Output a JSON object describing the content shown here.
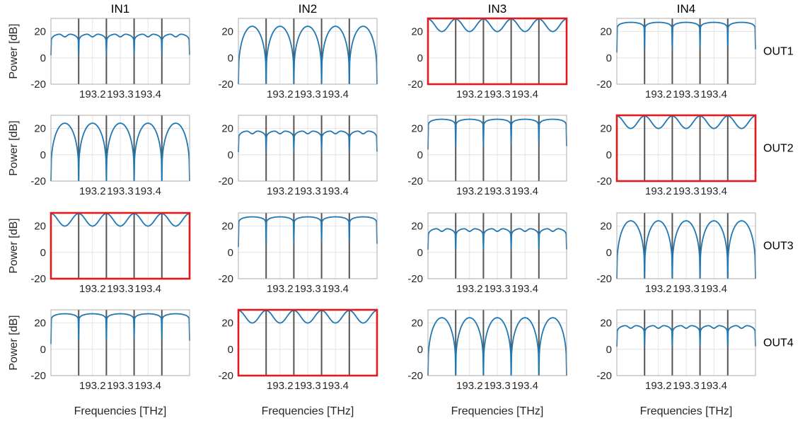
{
  "figure": {
    "column_titles": [
      "IN1",
      "IN2",
      "IN3",
      "IN4"
    ],
    "row_labels": [
      "OUT1",
      "OUT2",
      "OUT3",
      "OUT4"
    ]
  },
  "colors": {
    "line": "#1f77b4",
    "highlight_border": "#e31a1c",
    "channel_marker": "#555555",
    "grid": "#dddddd",
    "axes": "#262626"
  },
  "chart_data": {
    "type": "line",
    "layout": "4x4 subplot grid",
    "xlabel": "Frequencies [THz]",
    "ylabel": "Power [dB]",
    "xlim": [
      193.05,
      193.55
    ],
    "ylim": [
      -20,
      30
    ],
    "xticks": [
      193.2,
      193.3,
      193.4
    ],
    "xtick_labels": [
      "193.2",
      "193.3",
      "193.4"
    ],
    "yticks": [
      -20,
      0,
      20
    ],
    "ytick_labels": [
      "-20",
      "0",
      "20"
    ],
    "grid": true,
    "channel_markers_thz": [
      193.15,
      193.25,
      193.35,
      193.45
    ],
    "null_frequencies_thz": [
      193.05,
      193.15,
      193.25,
      193.35,
      193.45,
      193.55
    ],
    "response_profiles": {
      "high_ripple": {
        "description": "shallow dips",
        "peak_db": 29.5,
        "dip_db": 20
      },
      "flat_top": {
        "peak_db": 27,
        "edge_db": 4
      },
      "dome": {
        "peak_db": 24,
        "edge_db": -20
      },
      "double_hump": {
        "peak_db": 18.5,
        "center_db": 16,
        "edge_db": 2
      }
    },
    "panels": [
      {
        "row": 1,
        "col": 1,
        "profile": "double_hump",
        "highlighted": false
      },
      {
        "row": 1,
        "col": 2,
        "profile": "dome",
        "highlighted": false
      },
      {
        "row": 1,
        "col": 3,
        "profile": "high_ripple",
        "highlighted": true
      },
      {
        "row": 1,
        "col": 4,
        "profile": "flat_top",
        "highlighted": false
      },
      {
        "row": 2,
        "col": 1,
        "profile": "dome",
        "highlighted": false
      },
      {
        "row": 2,
        "col": 2,
        "profile": "double_hump",
        "highlighted": false
      },
      {
        "row": 2,
        "col": 3,
        "profile": "flat_top",
        "highlighted": false
      },
      {
        "row": 2,
        "col": 4,
        "profile": "high_ripple",
        "highlighted": true
      },
      {
        "row": 3,
        "col": 1,
        "profile": "high_ripple",
        "highlighted": true
      },
      {
        "row": 3,
        "col": 2,
        "profile": "flat_top",
        "highlighted": false
      },
      {
        "row": 3,
        "col": 3,
        "profile": "double_hump",
        "highlighted": false
      },
      {
        "row": 3,
        "col": 4,
        "profile": "dome",
        "highlighted": false
      },
      {
        "row": 4,
        "col": 1,
        "profile": "flat_top",
        "highlighted": false
      },
      {
        "row": 4,
        "col": 2,
        "profile": "high_ripple",
        "highlighted": true
      },
      {
        "row": 4,
        "col": 3,
        "profile": "dome",
        "highlighted": false
      },
      {
        "row": 4,
        "col": 4,
        "profile": "double_hump",
        "highlighted": false
      }
    ]
  }
}
